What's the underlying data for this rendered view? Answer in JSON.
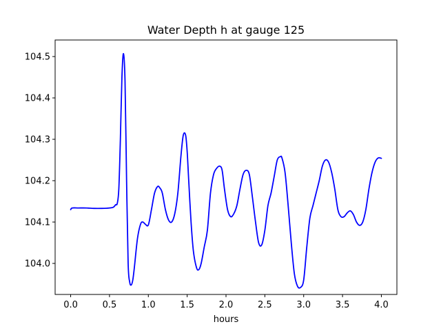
{
  "chart_data": {
    "type": "line",
    "title": "Water Depth h at gauge 125",
    "xlabel": "hours",
    "ylabel": "",
    "xlim": [
      -0.2,
      4.2
    ],
    "ylim": [
      103.925,
      104.54
    ],
    "xticks": [
      0.0,
      0.5,
      1.0,
      1.5,
      2.0,
      2.5,
      3.0,
      3.5,
      4.0
    ],
    "xtick_labels": [
      "0.0",
      "0.5",
      "1.0",
      "1.5",
      "2.0",
      "2.5",
      "3.0",
      "3.5",
      "4.0"
    ],
    "yticks": [
      104.0,
      104.1,
      104.2,
      104.3,
      104.4,
      104.5
    ],
    "ytick_labels": [
      "104.0",
      "104.1",
      "104.2",
      "104.3",
      "104.4",
      "104.5"
    ],
    "grid": false,
    "line_color": "#0000ff",
    "series": [
      {
        "name": "",
        "x": [
          0.0,
          0.02,
          0.1,
          0.2,
          0.3,
          0.4,
          0.5,
          0.55,
          0.58,
          0.6,
          0.62,
          0.64,
          0.66,
          0.68,
          0.7,
          0.72,
          0.74,
          0.76,
          0.78,
          0.8,
          0.82,
          0.86,
          0.9,
          0.93,
          0.96,
          1.0,
          1.04,
          1.08,
          1.12,
          1.15,
          1.18,
          1.22,
          1.26,
          1.3,
          1.34,
          1.38,
          1.42,
          1.45,
          1.48,
          1.5,
          1.52,
          1.55,
          1.58,
          1.62,
          1.65,
          1.68,
          1.72,
          1.76,
          1.8,
          1.84,
          1.88,
          1.92,
          1.95,
          1.98,
          2.02,
          2.06,
          2.1,
          2.14,
          2.18,
          2.22,
          2.26,
          2.3,
          2.34,
          2.38,
          2.42,
          2.46,
          2.5,
          2.54,
          2.58,
          2.62,
          2.66,
          2.7,
          2.72,
          2.76,
          2.8,
          2.84,
          2.88,
          2.92,
          2.96,
          3.0,
          3.04,
          3.08,
          3.12,
          3.16,
          3.2,
          3.24,
          3.28,
          3.32,
          3.36,
          3.4,
          3.44,
          3.48,
          3.52,
          3.56,
          3.6,
          3.64,
          3.68,
          3.72,
          3.76,
          3.8,
          3.84,
          3.88,
          3.92,
          3.96,
          4.0
        ],
        "y": [
          104.13,
          104.134,
          104.134,
          104.134,
          104.133,
          104.133,
          104.134,
          104.136,
          104.142,
          104.145,
          104.18,
          104.3,
          104.45,
          104.507,
          104.44,
          104.2,
          104.0,
          103.955,
          103.948,
          103.96,
          103.99,
          104.06,
          104.095,
          104.1,
          104.095,
          104.093,
          104.13,
          104.17,
          104.186,
          104.182,
          104.17,
          104.13,
          104.105,
          104.1,
          104.12,
          104.17,
          104.26,
          104.31,
          104.31,
          104.27,
          104.2,
          104.1,
          104.03,
          103.99,
          103.985,
          104.0,
          104.04,
          104.08,
          104.17,
          104.215,
          104.23,
          104.235,
          104.225,
          104.18,
          104.13,
          104.113,
          104.12,
          104.14,
          104.18,
          104.215,
          104.225,
          104.215,
          104.16,
          104.1,
          104.05,
          104.045,
          104.08,
          104.14,
          104.17,
          104.21,
          104.25,
          104.258,
          104.255,
          104.22,
          104.14,
          104.05,
          103.975,
          103.945,
          103.942,
          103.96,
          104.04,
          104.11,
          104.14,
          104.17,
          104.2,
          104.235,
          104.25,
          104.245,
          104.22,
          104.18,
          104.13,
          104.113,
          104.113,
          104.122,
          104.127,
          104.118,
          104.1,
          104.092,
          104.1,
          104.13,
          104.18,
          104.22,
          104.245,
          104.255,
          104.254
        ]
      }
    ]
  }
}
